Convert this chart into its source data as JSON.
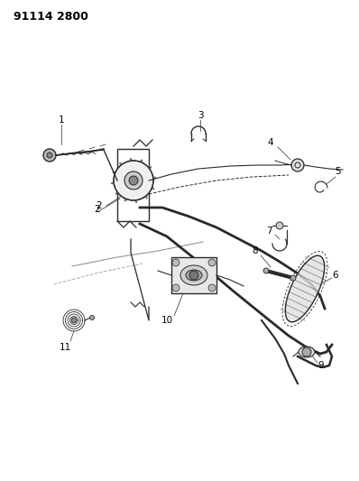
{
  "title": "91114 2800",
  "bg_color": "#ffffff",
  "line_color": "#2a2a2a",
  "label_color": "#000000",
  "title_fontsize": 9,
  "label_fontsize": 7.5,
  "figsize": [
    3.98,
    5.33
  ],
  "dpi": 100
}
